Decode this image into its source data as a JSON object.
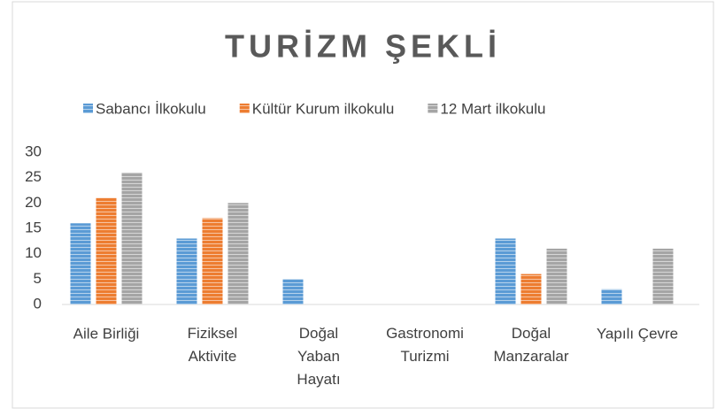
{
  "chart_data": {
    "type": "bar",
    "title": "TURİZM ŞEKLİ",
    "categories": [
      "Aile Birliği",
      "Fiziksel Aktivite",
      "Doğal Yaban Hayatı",
      "Gastronomi Turizmi",
      "Doğal Manzaralar",
      "Yapılı Çevre"
    ],
    "series": [
      {
        "name": "Sabancı İlkokulu",
        "color": "#5b9bd5",
        "values": [
          16,
          13,
          5,
          0,
          13,
          3
        ]
      },
      {
        "name": "Kültür Kurum ilkokulu",
        "color": "#ed7d31",
        "values": [
          21,
          17,
          0,
          0,
          6,
          0
        ]
      },
      {
        "name": "12 Mart ilkokulu",
        "color": "#a5a5a5",
        "values": [
          26,
          20,
          0,
          0,
          11,
          11
        ]
      }
    ],
    "ylim": [
      0,
      30
    ],
    "yticks": [
      0,
      5,
      10,
      15,
      20,
      25,
      30
    ],
    "legend": "top"
  }
}
